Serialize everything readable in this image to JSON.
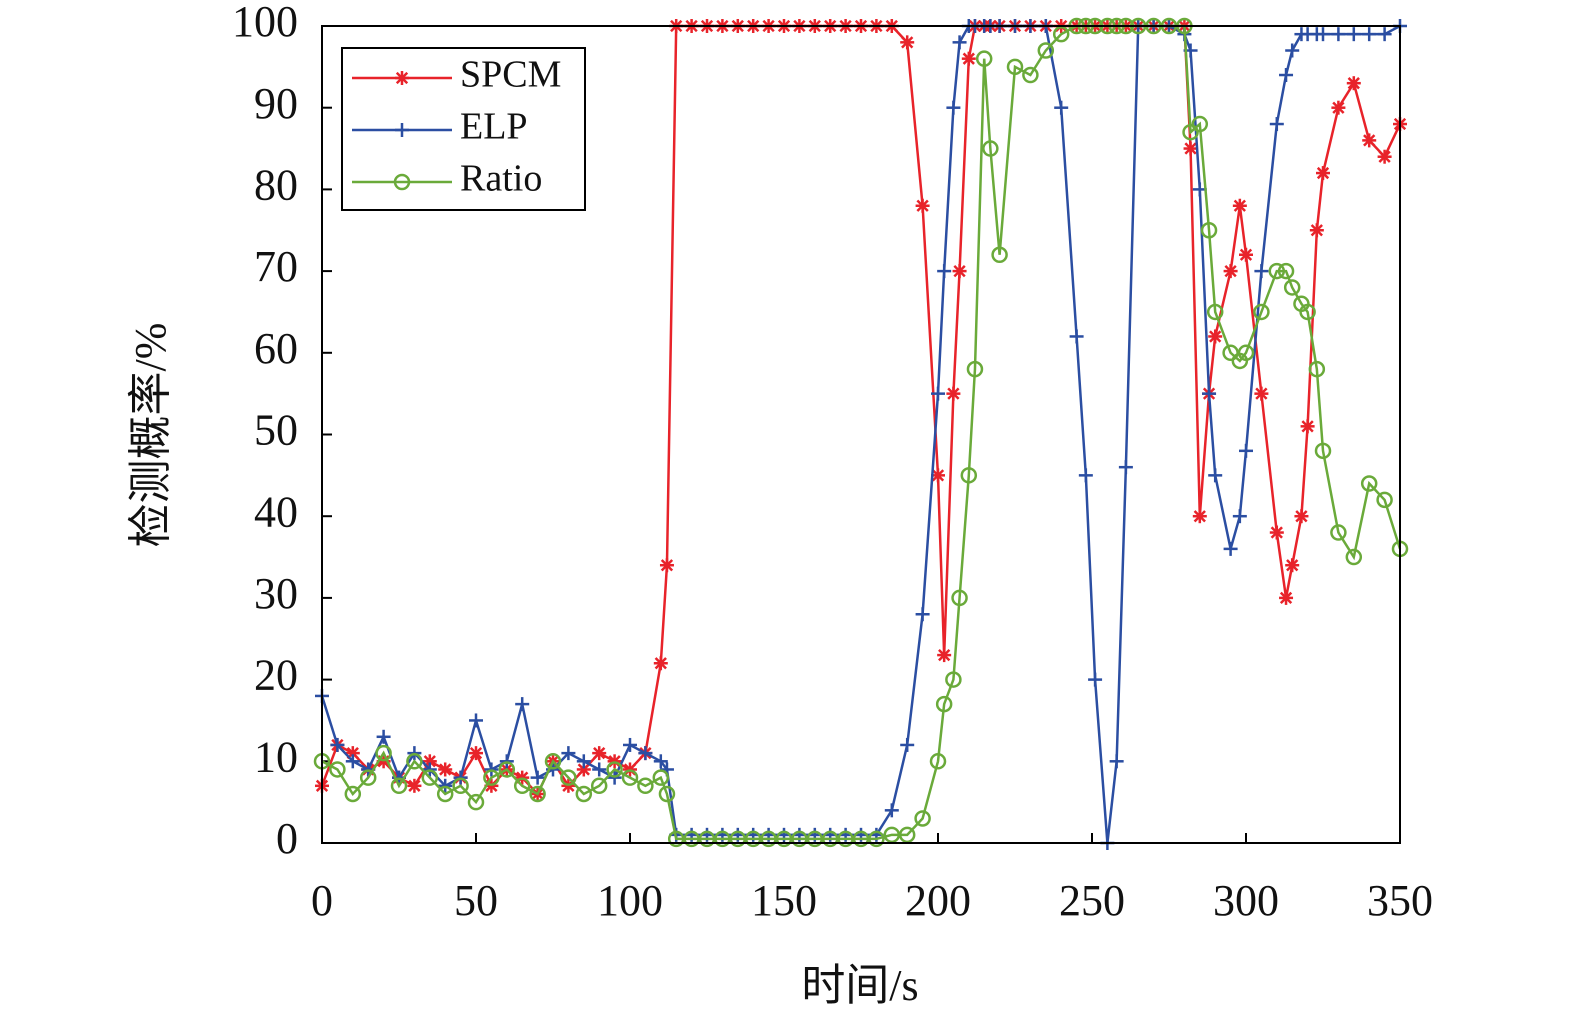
{
  "chart_data": {
    "type": "line",
    "x_label": "时间/s",
    "y_label": "检测概率/%",
    "x": [
      0,
      5,
      10,
      15,
      20,
      25,
      30,
      35,
      40,
      45,
      50,
      55,
      60,
      65,
      70,
      75,
      80,
      85,
      90,
      95,
      100,
      105,
      110,
      112,
      115,
      120,
      125,
      130,
      135,
      140,
      145,
      150,
      155,
      160,
      165,
      170,
      175,
      180,
      185,
      190,
      195,
      200,
      202,
      205,
      207,
      210,
      212,
      215,
      217,
      220,
      225,
      230,
      235,
      240,
      245,
      248,
      251,
      255,
      258,
      261,
      265,
      270,
      275,
      280,
      282,
      285,
      288,
      290,
      295,
      298,
      300,
      305,
      310,
      313,
      315,
      318,
      320,
      323,
      325,
      330,
      335,
      340,
      345,
      350
    ],
    "series": [
      {
        "name": "SPCM",
        "color": "#e8232a",
        "marker": "asterisk",
        "values": [
          7,
          12,
          11,
          9,
          10,
          8,
          7,
          10,
          9,
          8,
          11,
          7,
          9,
          8,
          6,
          10,
          7,
          9,
          11,
          10,
          9,
          11,
          22,
          34,
          100,
          100,
          100,
          100,
          100,
          100,
          100,
          100,
          100,
          100,
          100,
          100,
          100,
          100,
          100,
          98,
          78,
          45,
          23,
          55,
          70,
          96,
          100,
          100,
          100,
          100,
          100,
          100,
          100,
          100,
          100,
          100,
          100,
          100,
          100,
          100,
          100,
          100,
          100,
          100,
          85,
          40,
          55,
          62,
          70,
          78,
          72,
          55,
          38,
          30,
          34,
          40,
          51,
          75,
          82,
          90,
          93,
          86,
          84,
          88
        ]
      },
      {
        "name": "ELP",
        "color": "#2b4ea2",
        "marker": "plus",
        "values": [
          18,
          12,
          10,
          9,
          13,
          8,
          11,
          9,
          7,
          8,
          15,
          9,
          10,
          17,
          8,
          9,
          11,
          10,
          9,
          8,
          12,
          11,
          10,
          9,
          1,
          1,
          1,
          1,
          1,
          1,
          1,
          1,
          1,
          1,
          1,
          1,
          1,
          1,
          4,
          12,
          28,
          55,
          70,
          90,
          98,
          100,
          100,
          100,
          100,
          100,
          100,
          100,
          100,
          90,
          62,
          45,
          20,
          0,
          10,
          46,
          100,
          100,
          100,
          99,
          97,
          80,
          55,
          45,
          36,
          40,
          48,
          70,
          88,
          94,
          97,
          99,
          99,
          99,
          99,
          99,
          99,
          99,
          99,
          100
        ]
      },
      {
        "name": "Ratio",
        "color": "#6aaa3a",
        "marker": "circle",
        "values": [
          10,
          9,
          6,
          8,
          11,
          7,
          10,
          8,
          6,
          7,
          5,
          8,
          9,
          7,
          6,
          10,
          8,
          6,
          7,
          9,
          8,
          7,
          8,
          6,
          0.5,
          0.5,
          0.5,
          0.5,
          0.5,
          0.5,
          0.5,
          0.5,
          0.5,
          0.5,
          0.5,
          0.5,
          0.5,
          0.5,
          1,
          1,
          3,
          10,
          17,
          20,
          30,
          45,
          58,
          96,
          85,
          72,
          95,
          94,
          97,
          99,
          100,
          100,
          100,
          100,
          100,
          100,
          100,
          100,
          100,
          100,
          87,
          88,
          75,
          65,
          60,
          59,
          60,
          65,
          70,
          70,
          68,
          66,
          65,
          58,
          48,
          38,
          35,
          44,
          42,
          36
        ]
      }
    ],
    "xlim": [
      0,
      350
    ],
    "xticks": [
      0,
      50,
      100,
      150,
      200,
      250,
      300,
      350
    ],
    "ylim": [
      0,
      100
    ],
    "yticks": [
      0,
      10,
      20,
      30,
      40,
      50,
      60,
      70,
      80,
      90,
      100
    ],
    "legend": "upper left"
  }
}
